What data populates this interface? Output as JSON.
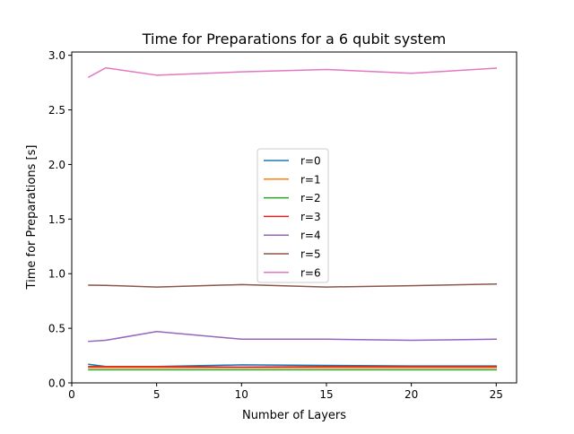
{
  "chart_data": {
    "type": "line",
    "title": "Time for Preparations for a 6 qubit system",
    "xlabel": "Number of Layers",
    "ylabel": "Time for Preparations [s]",
    "xlim": [
      0,
      26.2
    ],
    "ylim": [
      0,
      3.03
    ],
    "xticks": [
      0,
      5,
      10,
      15,
      20,
      25
    ],
    "yticks": [
      0.0,
      0.5,
      1.0,
      1.5,
      2.0,
      2.5,
      3.0
    ],
    "xtick_labels": [
      "0",
      "5",
      "10",
      "15",
      "20",
      "25"
    ],
    "ytick_labels": [
      "0.0",
      "0.5",
      "1.0",
      "1.5",
      "2.0",
      "2.5",
      "3.0"
    ],
    "grid": false,
    "legend_position": "center",
    "x": [
      1,
      2,
      5,
      10,
      15,
      20,
      25
    ],
    "series": [
      {
        "name": "r=0",
        "color": "#1f77b4",
        "values": [
          0.17,
          0.15,
          0.15,
          0.165,
          0.16,
          0.155,
          0.155
        ]
      },
      {
        "name": "r=1",
        "color": "#ff7f0e",
        "values": [
          0.14,
          0.14,
          0.14,
          0.14,
          0.14,
          0.14,
          0.14
        ]
      },
      {
        "name": "r=2",
        "color": "#2ca02c",
        "values": [
          0.12,
          0.12,
          0.12,
          0.12,
          0.12,
          0.12,
          0.12
        ]
      },
      {
        "name": "r=3",
        "color": "#d62728",
        "values": [
          0.15,
          0.15,
          0.15,
          0.145,
          0.15,
          0.15,
          0.15
        ]
      },
      {
        "name": "r=4",
        "color": "#9467bd",
        "values": [
          0.38,
          0.39,
          0.47,
          0.4,
          0.4,
          0.39,
          0.4
        ]
      },
      {
        "name": "r=5",
        "color": "#8c564b",
        "values": [
          0.895,
          0.893,
          0.878,
          0.9,
          0.878,
          0.89,
          0.905
        ]
      },
      {
        "name": "r=6",
        "color": "#e377c2",
        "values": [
          2.8,
          2.885,
          2.818,
          2.848,
          2.87,
          2.835,
          2.882
        ]
      }
    ]
  }
}
